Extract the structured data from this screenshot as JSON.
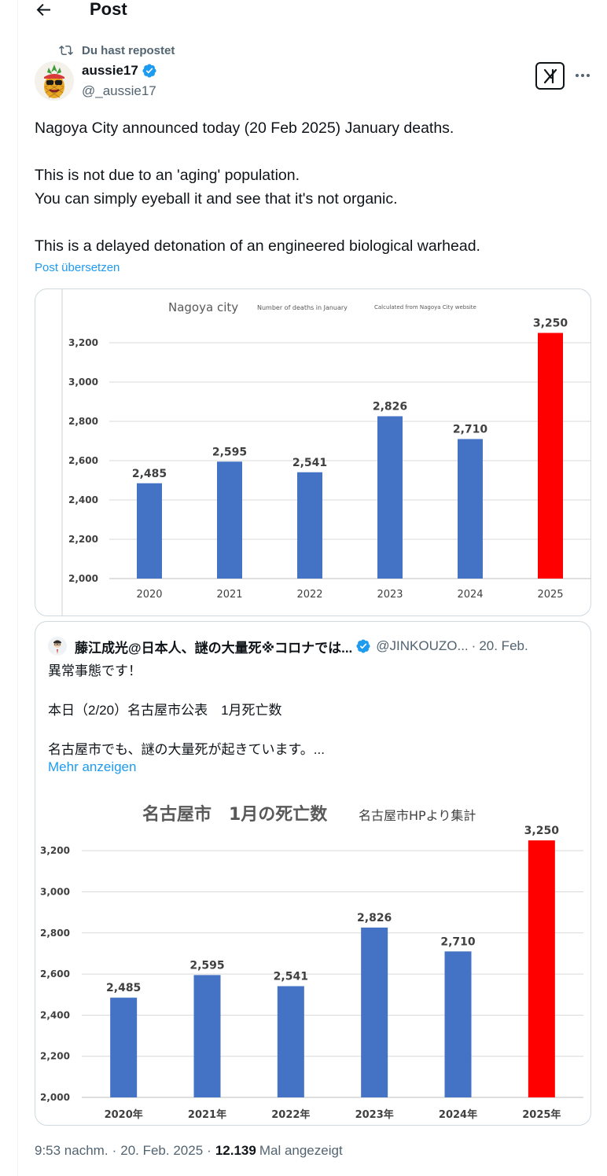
{
  "header": {
    "title": "Post",
    "back_icon": "arrow-left-icon"
  },
  "repost": {
    "label": "Du hast repostet",
    "icon": "repost-icon"
  },
  "author": {
    "name": "aussie17",
    "handle": "@_aussie17",
    "verified_color": "#1d9bf0"
  },
  "post": {
    "lines": [
      "Nagoya City announced today (20 Feb 2025) January deaths.",
      "",
      "This is not due to an 'aging' population.",
      "You can simply eyeball it and see that it's not organic.",
      "",
      "This is a delayed detonation of an engineered biological warhead."
    ],
    "translate": "Post übersetzen"
  },
  "quote": {
    "name": "藤江成光@日本人、謎の大量死※コロナでは...",
    "handle": "@JINKOUZO...",
    "dot": "·",
    "date": "20. Feb.",
    "lines": [
      "異常事態です！",
      "",
      "本日（2/20）名古屋市公表　1月死亡数",
      "",
      "名古屋市でも、謎の大量死が起きています。..."
    ],
    "show_more": "Mehr anzeigen"
  },
  "footer": {
    "time": "9:53 nachm.",
    "date": "20. Feb. 2025",
    "views": "12.139",
    "views_label": "Mal angezeigt",
    "sep": "·"
  },
  "chart_data": [
    {
      "type": "bar",
      "title": "Nagoya city",
      "subtitle": "Number of deaths in January",
      "note": "Calculated from Nagoya City website",
      "categories": [
        "2020",
        "2021",
        "2022",
        "2023",
        "2024",
        "2025"
      ],
      "values": [
        2485,
        2595,
        2541,
        2826,
        2710,
        3250
      ],
      "data_labels": [
        "2,485",
        "2,595",
        "2,541",
        "2,826",
        "2,710",
        "3,250"
      ],
      "y_ticks": [
        "2,000",
        "2,200",
        "2,400",
        "2,600",
        "2,800",
        "3,000",
        "3,200"
      ],
      "y_tick_values": [
        2000,
        2200,
        2400,
        2600,
        2800,
        3000,
        3200
      ],
      "ylim": [
        2000,
        3300
      ],
      "colors": [
        "#4472c4",
        "#4472c4",
        "#4472c4",
        "#4472c4",
        "#4472c4",
        "#ff0000"
      ],
      "grid": true
    },
    {
      "type": "bar",
      "title": "名古屋市　1月の死亡数",
      "note": "名古屋市HPより集計",
      "categories": [
        "2020年",
        "2021年",
        "2022年",
        "2023年",
        "2024年",
        "2025年"
      ],
      "values": [
        2485,
        2595,
        2541,
        2826,
        2710,
        3250
      ],
      "data_labels": [
        "2,485",
        "2,595",
        "2,541",
        "2,826",
        "2,710",
        "3,250"
      ],
      "y_ticks": [
        "2,000",
        "2,200",
        "2,400",
        "2,600",
        "2,800",
        "3,000",
        "3,200"
      ],
      "y_tick_values": [
        2000,
        2200,
        2400,
        2600,
        2800,
        3000,
        3200
      ],
      "ylim": [
        2000,
        3300
      ],
      "colors": [
        "#4472c4",
        "#4472c4",
        "#4472c4",
        "#4472c4",
        "#4472c4",
        "#ff0000"
      ],
      "grid": true
    }
  ]
}
